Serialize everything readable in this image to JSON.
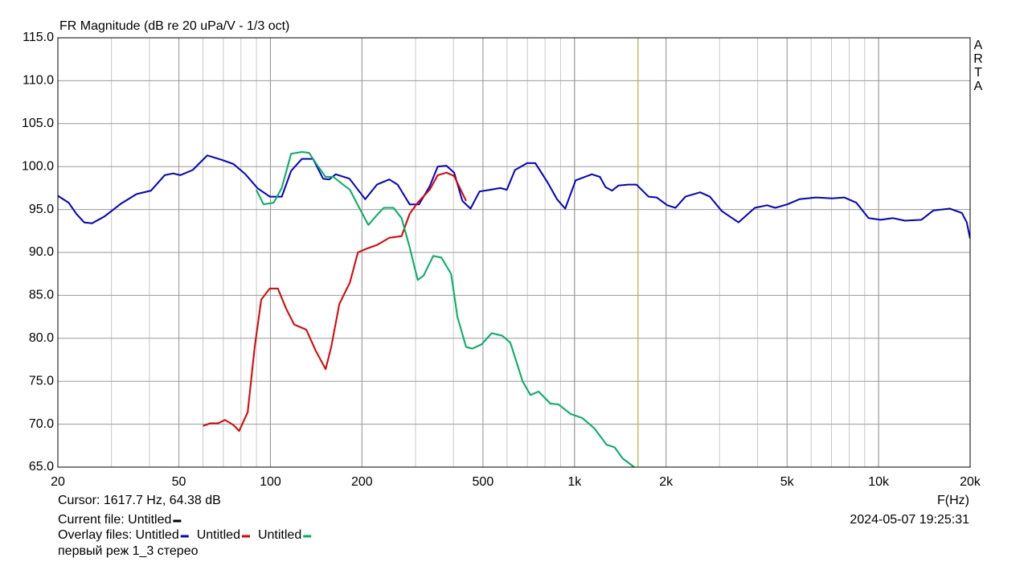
{
  "chart_data": {
    "type": "line",
    "title": "FR Magnitude (dB re 20 uPa/V - 1/3 oct)",
    "xlabel": "F(Hz)",
    "xscale": "log",
    "grid": true,
    "brand": [
      "A",
      "R",
      "T",
      "A"
    ],
    "xlim": [
      20,
      20000
    ],
    "ylim": [
      65,
      115
    ],
    "xticks": [
      20,
      50,
      100,
      200,
      500,
      {
        "value": 1000,
        "label": "1k"
      },
      {
        "value": 2000,
        "label": "2k"
      },
      {
        "value": 5000,
        "label": "5k"
      },
      {
        "value": 10000,
        "label": "10k"
      },
      {
        "value": 20000,
        "label": "20k"
      }
    ],
    "yticks": [
      {
        "value": 65,
        "label": "65.0"
      },
      {
        "value": 70,
        "label": "70.0"
      },
      {
        "value": 75,
        "label": "75.0"
      },
      {
        "value": 80,
        "label": "80.0"
      },
      {
        "value": 85,
        "label": "85.0"
      },
      {
        "value": 90,
        "label": "90.0"
      },
      {
        "value": 95,
        "label": "95.0"
      },
      {
        "value": 100,
        "label": "100.0"
      },
      {
        "value": 105,
        "label": "105.0"
      },
      {
        "value": 110,
        "label": "110.0"
      },
      {
        "value": 115,
        "label": "115.0"
      }
    ],
    "cursor": {
      "x": 1617.7,
      "label": "Cursor: 1617.7 Hz, 64.38 dB",
      "color": "#b8b040"
    },
    "current_file": {
      "label": "Current file: Untitled",
      "color": "#000000"
    },
    "overlay_label": "Overlay files:",
    "date": "2024-05-07  19:25:31",
    "note": "первый реж 1_3 стерео",
    "series": [
      {
        "name": "Untitled",
        "color": "#0000d0",
        "x": [
          20,
          21.7,
          23,
          24.4,
          25.9,
          28.5,
          32.3,
          36.3,
          40.5,
          44.9,
          47.9,
          50.5,
          55.5,
          62,
          69,
          75.6,
          82.8,
          90.6,
          99.5,
          109,
          117,
          127,
          138,
          149,
          156,
          164,
          182,
          205,
          224,
          246,
          262,
          287,
          308,
          334,
          355,
          379,
          402,
          428,
          455,
          487,
          529,
          570,
          599,
          637,
          699,
          743,
          814,
          876,
          932,
          1009,
          1140,
          1212,
          1265,
          1329,
          1396,
          1502,
          1598,
          1752,
          1863,
          2019,
          2149,
          2316,
          2589,
          2787,
          3054,
          3461,
          3918,
          4299,
          4571,
          5009,
          5492,
          6213,
          7029,
          7707,
          8450,
          9266,
          10160,
          11141,
          12216,
          13820,
          15154,
          17144,
          18800,
          19500,
          20000
        ],
        "values": [
          96.6,
          95.8,
          94.5,
          93.5,
          93.4,
          94.2,
          95.7,
          96.8,
          97.2,
          99.0,
          99.2,
          99.0,
          99.6,
          101.3,
          100.8,
          100.3,
          99.1,
          97.5,
          96.5,
          96.5,
          99.5,
          100.9,
          100.9,
          98.6,
          98.5,
          99.1,
          98.6,
          96.2,
          97.9,
          98.5,
          97.9,
          95.6,
          95.6,
          97.7,
          100.0,
          100.1,
          99.3,
          96.0,
          95.1,
          97.1,
          97.3,
          97.5,
          97.3,
          99.6,
          100.4,
          100.4,
          98.2,
          96.2,
          95.1,
          98.4,
          99.1,
          98.8,
          97.6,
          97.2,
          97.8,
          97.9,
          97.9,
          96.5,
          96.4,
          95.5,
          95.2,
          96.5,
          97.0,
          96.5,
          94.8,
          93.5,
          95.2,
          95.5,
          95.2,
          95.6,
          96.2,
          96.4,
          96.3,
          96.4,
          95.8,
          94.0,
          93.8,
          94.0,
          93.7,
          93.8,
          94.9,
          95.1,
          94.6,
          93.5,
          91.6
        ]
      },
      {
        "name": "Untitled",
        "color": "#e00000",
        "x": [
          60,
          63.5,
          67.3,
          70.9,
          75.6,
          78.9,
          84.2,
          88.8,
          93.3,
          99.5,
          105.8,
          112.5,
          119.7,
          131.2,
          141.2,
          151.9,
          158.5,
          168.5,
          182.5,
          194,
          206,
          225,
          246,
          270,
          287,
          305,
          334,
          355,
          379,
          402,
          440
        ],
        "values": [
          69.8,
          70.1,
          70.1,
          70.5,
          69.9,
          69.2,
          71.4,
          79.0,
          84.5,
          85.8,
          85.8,
          83.5,
          81.6,
          81.0,
          78.5,
          76.4,
          79.0,
          84.0,
          86.5,
          90.0,
          90.4,
          90.9,
          91.7,
          91.9,
          94.5,
          95.8,
          97.3,
          99.0,
          99.3,
          98.9,
          96.0
        ]
      },
      {
        "name": "Untitled",
        "color": "#00b060",
        "x": [
          89.8,
          95,
          102.5,
          108.9,
          117,
          127,
          134,
          142.3,
          151.9,
          161,
          172,
          182.5,
          194,
          210,
          222,
          236,
          254,
          270,
          287,
          305,
          319,
          343,
          365,
          393,
          412,
          440,
          461,
          495,
          534,
          579,
          615,
          675,
          716,
          762,
          833,
          886,
          970,
          1062,
          1163,
          1275,
          1355,
          1441,
          1531,
          1598
        ],
        "values": [
          97.3,
          95.6,
          95.8,
          97.5,
          101.5,
          101.7,
          101.6,
          100.2,
          98.8,
          98.8,
          98.0,
          97.3,
          95.5,
          93.2,
          94.2,
          95.2,
          95.2,
          94.0,
          90.6,
          86.8,
          87.3,
          89.6,
          89.4,
          87.5,
          82.5,
          79.0,
          78.8,
          79.3,
          80.6,
          80.3,
          79.5,
          75.0,
          73.4,
          73.8,
          72.4,
          72.3,
          71.2,
          70.7,
          69.5,
          67.6,
          67.3,
          66.0,
          65.3,
          64.8
        ]
      }
    ]
  }
}
